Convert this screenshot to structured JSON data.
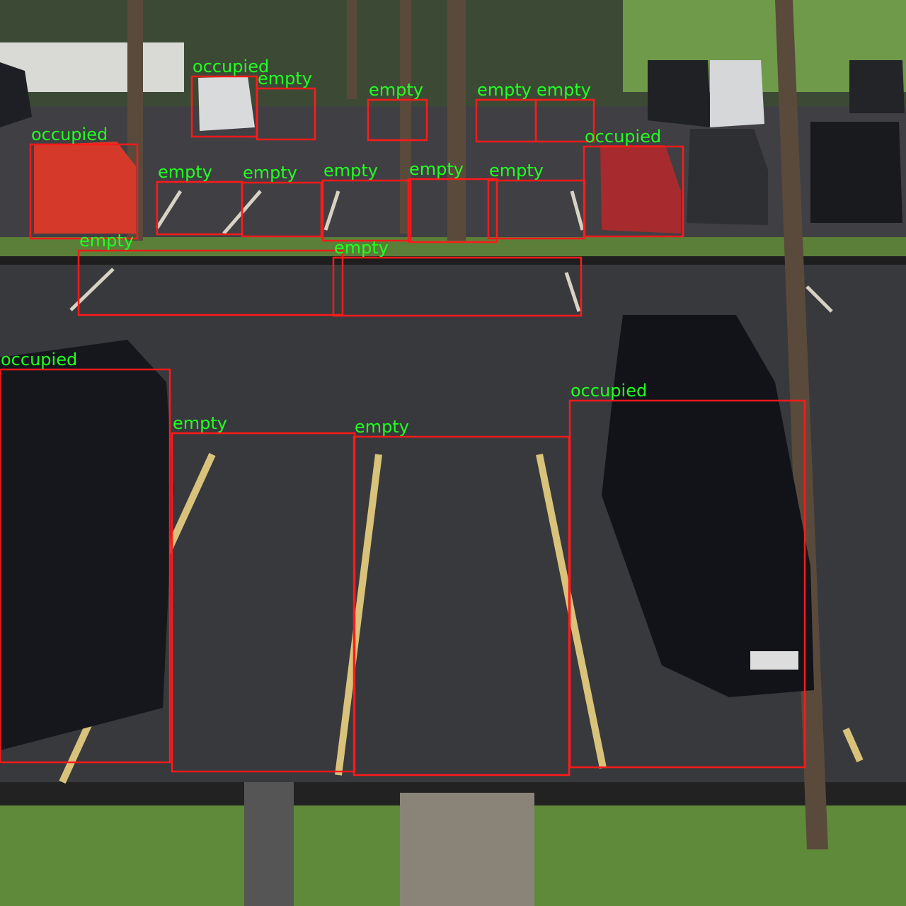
{
  "colors": {
    "box_stroke": "#ff1a1a",
    "label_text": "#22ff22",
    "asphalt": "#3a3b3e",
    "grass": "#5f8a3a"
  },
  "detections": [
    {
      "label": "occupied"
    },
    {
      "label": "empty"
    },
    {
      "label": "empty"
    },
    {
      "label": "empty"
    },
    {
      "label": "empty"
    },
    {
      "label": "occupied"
    },
    {
      "label": "occupied"
    },
    {
      "label": "empty"
    },
    {
      "label": "empty"
    },
    {
      "label": "empty"
    },
    {
      "label": "empty"
    },
    {
      "label": "empty"
    },
    {
      "label": "empty"
    },
    {
      "label": "empty"
    },
    {
      "label": "occupied"
    },
    {
      "label": "empty"
    },
    {
      "label": "empty"
    },
    {
      "label": "occupied"
    }
  ]
}
